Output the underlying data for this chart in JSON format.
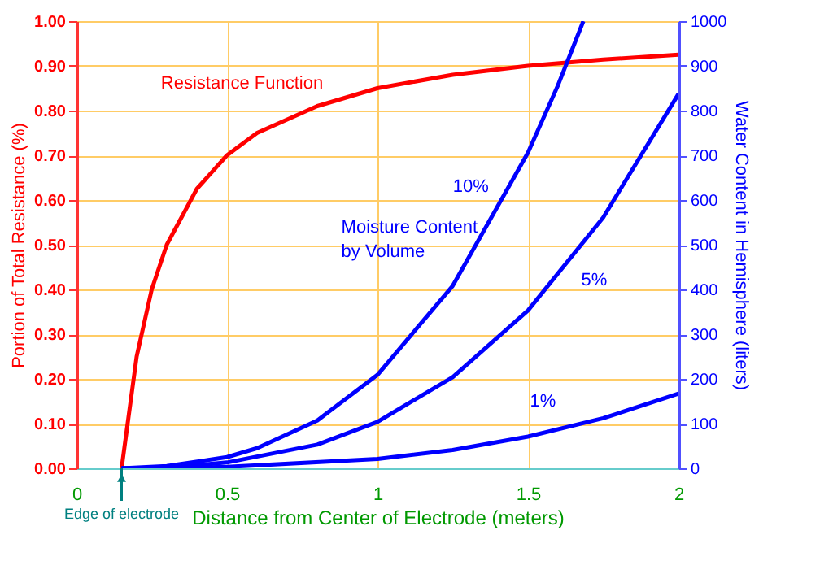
{
  "chart_data": {
    "type": "line",
    "xlabel": "Distance from Center of Electrode (meters)",
    "ylabel": "Portion of Total Resistance (%)",
    "y2label": "Water Content in Hemisphere (liters)",
    "xlim": [
      0,
      2
    ],
    "xticks": [
      0,
      0.5,
      1,
      1.5,
      2
    ],
    "ylim": [
      0,
      1
    ],
    "yticks": [
      {
        "value": 0,
        "label": "0.00"
      },
      {
        "value": 0.1,
        "label": "0.10"
      },
      {
        "value": 0.2,
        "label": "0.20"
      },
      {
        "value": 0.3,
        "label": "0.30"
      },
      {
        "value": 0.4,
        "label": "0.40"
      },
      {
        "value": 0.5,
        "label": "0.50"
      },
      {
        "value": 0.6,
        "label": "0.60"
      },
      {
        "value": 0.7,
        "label": "0.70"
      },
      {
        "value": 0.8,
        "label": "0.80"
      },
      {
        "value": 0.9,
        "label": "0.90"
      },
      {
        "value": 1,
        "label": "1.00"
      }
    ],
    "y2lim": [
      0,
      1000
    ],
    "y2ticks": [
      0,
      100,
      200,
      300,
      400,
      500,
      600,
      700,
      800,
      900,
      1000
    ],
    "grid": true,
    "series": [
      {
        "name": "Resistance Function",
        "color": "#ff0000",
        "x": [
          0.15,
          0.2,
          0.25,
          0.3,
          0.4,
          0.5,
          0.6,
          0.8,
          1.0,
          1.25,
          1.5,
          1.75,
          2.0
        ],
        "values": [
          0,
          0.25,
          0.4,
          0.5,
          0.625,
          0.7,
          0.75,
          0.81,
          0.85,
          0.88,
          0.9,
          0.914,
          0.925
        ]
      },
      {
        "name": "10%",
        "color": "#0000ff",
        "axis": "y2",
        "x": [
          0.15,
          0.3,
          0.5,
          0.6,
          0.8,
          1.0,
          1.25,
          1.5,
          1.6,
          1.684
        ],
        "values": [
          0,
          5,
          25,
          45,
          107,
          209,
          408,
          706,
          857,
          1000
        ]
      },
      {
        "name": "5%",
        "color": "#0000ff",
        "axis": "y2",
        "x": [
          0.15,
          0.3,
          0.5,
          0.8,
          1.0,
          1.25,
          1.5,
          1.75,
          2.0
        ],
        "values": [
          0,
          2,
          13,
          53,
          104,
          204,
          353,
          561,
          837
        ]
      },
      {
        "name": "1%",
        "color": "#0000ff",
        "axis": "y2",
        "x": [
          0.15,
          0.5,
          1.0,
          1.25,
          1.5,
          1.75,
          2.0
        ],
        "values": [
          0,
          3,
          21,
          41,
          71,
          112,
          167
        ]
      }
    ],
    "annotations": [
      "Moisture Content\nby Volume",
      {
        "text": "Edge of electrode",
        "x": 0.15,
        "y": 0
      }
    ]
  }
}
